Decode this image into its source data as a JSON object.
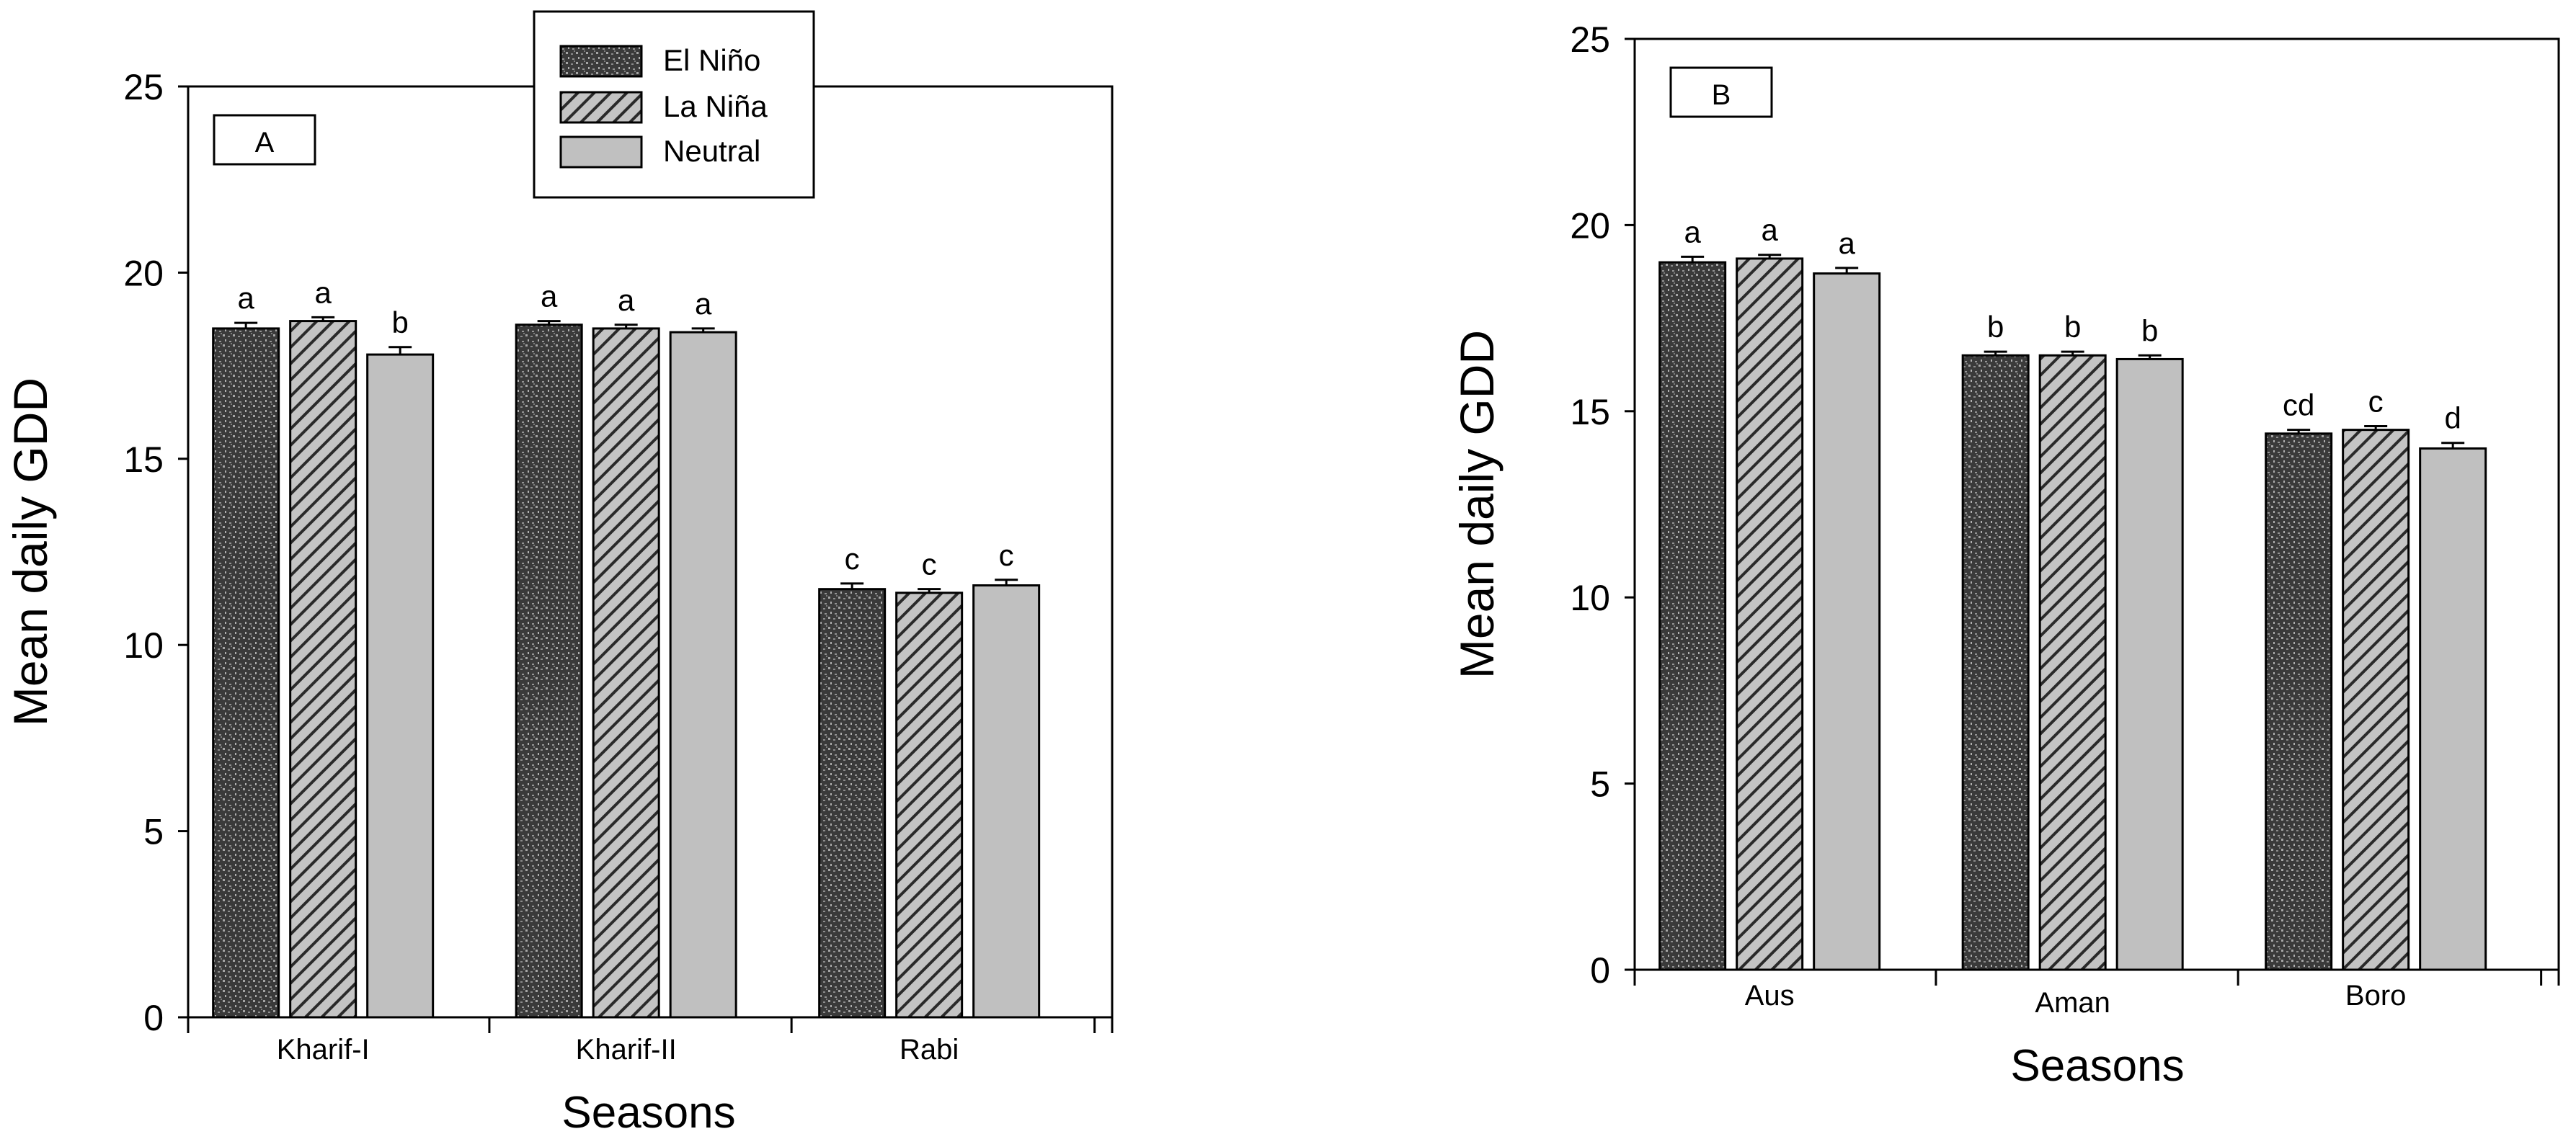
{
  "chart_data": [
    {
      "type": "bar",
      "panel_label": "A",
      "categories": [
        "Kharif-I",
        "Kharif-II",
        "Rabi"
      ],
      "series": [
        {
          "name": "El Niño",
          "values": [
            18.5,
            18.6,
            11.5
          ],
          "errors": [
            0.15,
            0.1,
            0.15
          ],
          "letters": [
            "a",
            "a",
            "c"
          ]
        },
        {
          "name": "La Niña",
          "values": [
            18.7,
            18.5,
            11.4
          ],
          "errors": [
            0.1,
            0.1,
            0.1
          ],
          "letters": [
            "a",
            "a",
            "c"
          ]
        },
        {
          "name": "Neutral",
          "values": [
            17.8,
            18.4,
            11.6
          ],
          "errors": [
            0.2,
            0.1,
            0.15
          ],
          "letters": [
            "b",
            "a",
            "c"
          ]
        }
      ],
      "xlabel": "Seasons",
      "ylabel": "Mean daily GDD",
      "ylim": [
        0,
        25
      ],
      "yticks": [
        "0",
        "5",
        "10",
        "15",
        "20",
        "25"
      ],
      "grid": false,
      "legend": {
        "position": "top-center",
        "entries": [
          "El Niño",
          "La Niña",
          "Neutral"
        ]
      }
    },
    {
      "type": "bar",
      "panel_label": "B",
      "categories": [
        "Aus",
        "Aman",
        "Boro"
      ],
      "series": [
        {
          "name": "El Niño",
          "values": [
            19.0,
            16.5,
            14.4
          ],
          "errors": [
            0.15,
            0.1,
            0.1
          ],
          "letters": [
            "a",
            "b",
            "cd"
          ]
        },
        {
          "name": "La Niña",
          "values": [
            19.1,
            16.5,
            14.5
          ],
          "errors": [
            0.1,
            0.1,
            0.1
          ],
          "letters": [
            "a",
            "b",
            "c"
          ]
        },
        {
          "name": "Neutral",
          "values": [
            18.7,
            16.4,
            14.0
          ],
          "errors": [
            0.15,
            0.1,
            0.15
          ],
          "letters": [
            "a",
            "b",
            "d"
          ]
        }
      ],
      "xlabel": "Seasons",
      "ylabel": "Mean daily GDD",
      "ylim": [
        0,
        25
      ],
      "yticks": [
        "0",
        "5",
        "10",
        "15",
        "20",
        "25"
      ],
      "grid": false
    }
  ],
  "style": {
    "el_nino_fill": "#3a3a3a",
    "el_nino_dots": "#9a9a9a",
    "la_nina_fill": "#c4c4c4",
    "la_nina_hatch": "#2a2a2a",
    "neutral_fill": "#c0c0c0",
    "axis_color": "#000000"
  }
}
